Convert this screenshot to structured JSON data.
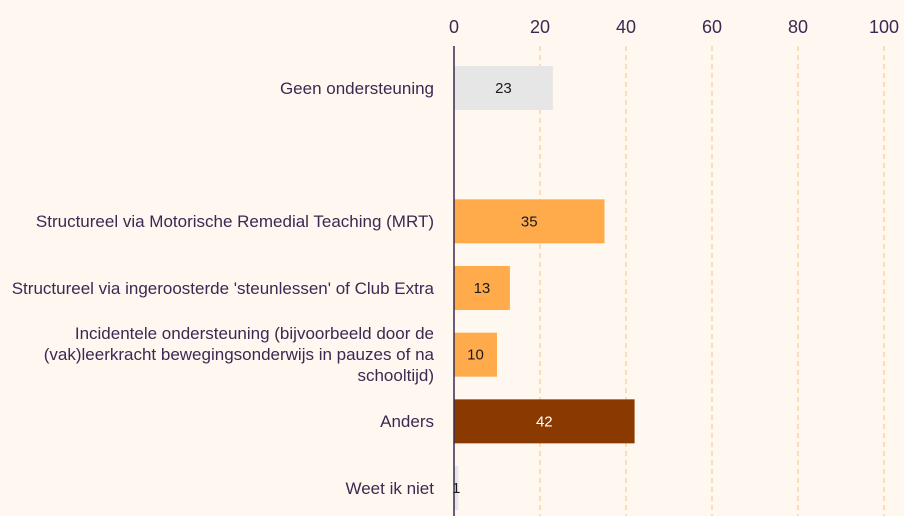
{
  "chart_data": {
    "type": "bar",
    "orientation": "horizontal",
    "categories": [
      "Geen ondersteuning",
      null,
      "Structureel via Motorische Remedial Teaching (MRT)",
      "Structureel via ingeroosterde 'steunlessen' of Club Extra",
      "Incidentele ondersteuning (bijvoorbeeld door de (vak)leerkracht bewegingsonderwijs in pauzes of na schooltijd)",
      "Anders",
      "Weet ik niet"
    ],
    "values": [
      23,
      null,
      35,
      13,
      10,
      42,
      1
    ],
    "colors": [
      "#e6e6e6",
      null,
      "#ffab4c",
      "#ffab4c",
      "#ffab4c",
      "#8a3a00",
      "#e6e6e6"
    ],
    "xlim": [
      0,
      100
    ],
    "xticks": [
      0,
      20,
      40,
      60,
      80,
      100
    ],
    "grid": true
  }
}
